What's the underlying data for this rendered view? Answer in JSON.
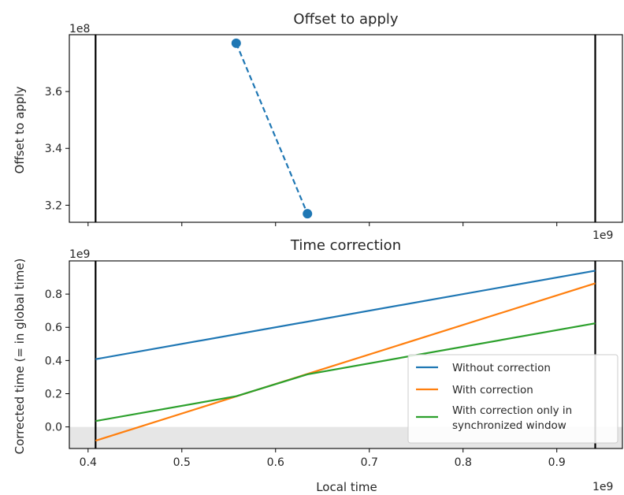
{
  "chart_data": [
    {
      "type": "line",
      "title": "Offset to apply",
      "xlabel": "",
      "ylabel": "Offset to apply",
      "y_multiplier_label": "1e8",
      "x_multiplier_label": "1e9",
      "xlim": [
        0.38,
        0.97
      ],
      "ylim": [
        3.14,
        3.8
      ],
      "y_scale": 100000000,
      "x_scale": 1000000000,
      "yticks": [
        3.2,
        3.4,
        3.6
      ],
      "ytick_labels": [
        "3.2",
        "3.4",
        "3.6"
      ],
      "xticks": [
        0.4,
        0.5,
        0.6,
        0.7,
        0.8,
        0.9
      ],
      "show_xtick_labels": false,
      "vlines": [
        0.408,
        0.941
      ],
      "series": [
        {
          "name": "",
          "color": "#1f77b4",
          "style": "dashed",
          "marker": "circle",
          "x": [
            0.558,
            0.634
          ],
          "y": [
            3.77,
            3.17
          ]
        }
      ]
    },
    {
      "type": "line",
      "title": "Time correction",
      "xlabel": "Local time",
      "ylabel": "Corrected time (= in global time)",
      "y_multiplier_label": "1e9",
      "x_multiplier_label": "1e9",
      "xlim": [
        0.38,
        0.97
      ],
      "ylim": [
        -0.13,
        1.0
      ],
      "y_scale": 1000000000,
      "x_scale": 1000000000,
      "yticks": [
        0.0,
        0.2,
        0.4,
        0.6,
        0.8
      ],
      "ytick_labels": [
        "0.0",
        "0.2",
        "0.4",
        "0.6",
        "0.8"
      ],
      "xticks": [
        0.4,
        0.5,
        0.6,
        0.7,
        0.8,
        0.9
      ],
      "xtick_labels": [
        "0.4",
        "0.5",
        "0.6",
        "0.7",
        "0.8",
        "0.9"
      ],
      "vlines": [
        0.408,
        0.941
      ],
      "shaded_region": {
        "y_from": -0.13,
        "y_to": 0.0,
        "color": "#e6e6e6"
      },
      "legend": "bottom-right",
      "series": [
        {
          "name": "Without correction",
          "color": "#1f77b4",
          "x": [
            0.408,
            0.941
          ],
          "y": [
            0.408,
            0.941
          ]
        },
        {
          "name": "With correction",
          "color": "#ff7f0e",
          "x": [
            0.408,
            0.941
          ],
          "y": [
            -0.083,
            0.865
          ]
        },
        {
          "name": "With correction only in synchronized window",
          "name_lines": [
            "With correction only in",
            "synchronized window"
          ],
          "color": "#2ca02c",
          "x": [
            0.408,
            0.558,
            0.634,
            0.941
          ],
          "y": [
            0.035,
            0.185,
            0.317,
            0.624
          ]
        }
      ]
    }
  ]
}
